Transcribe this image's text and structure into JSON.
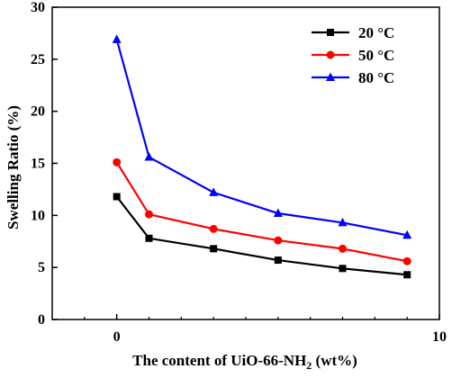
{
  "chart_data": {
    "type": "line",
    "title": "",
    "xlabel": {
      "main": "The content of UiO-66-NH",
      "subscript": "2",
      "suffix": " (wt%)"
    },
    "ylabel": "Swelling Ratio (%)",
    "xlim": [
      -2,
      10
    ],
    "ylim": [
      0,
      30
    ],
    "xticks": [
      0,
      10
    ],
    "yticks": [
      0,
      5,
      10,
      15,
      20,
      25,
      30
    ],
    "grid": false,
    "legend_position": "top-right",
    "x": [
      0,
      1,
      3,
      5,
      7,
      9
    ],
    "series": [
      {
        "name": "20 °C",
        "color": "#000000",
        "marker": "square",
        "values": [
          11.8,
          7.8,
          6.8,
          5.7,
          4.9,
          4.3
        ]
      },
      {
        "name": "50 °C",
        "color": "#ff0000",
        "marker": "circle",
        "values": [
          15.1,
          10.1,
          8.7,
          7.6,
          6.8,
          5.6
        ]
      },
      {
        "name": "80 °C",
        "color": "#0000ff",
        "marker": "triangle",
        "values": [
          26.9,
          15.6,
          12.2,
          10.2,
          9.3,
          8.1
        ]
      }
    ]
  }
}
